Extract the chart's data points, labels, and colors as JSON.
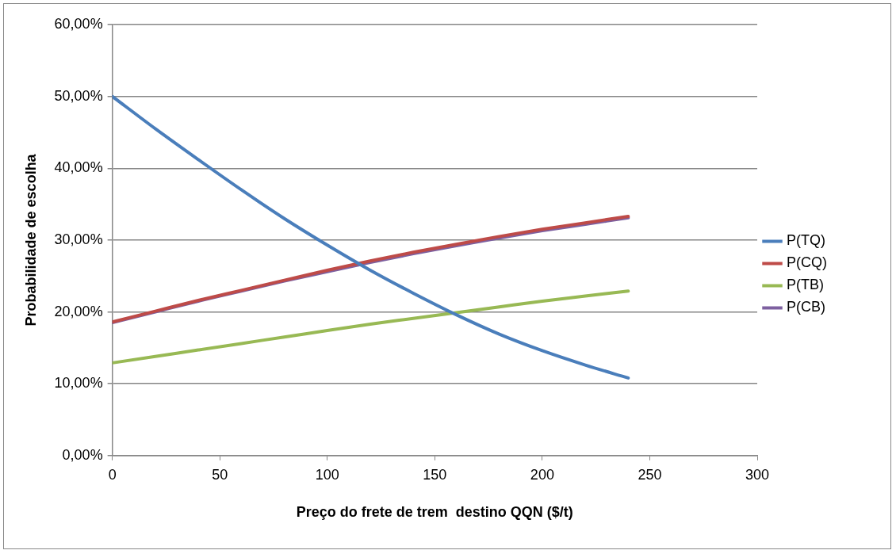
{
  "chart_data": {
    "type": "line",
    "xlabel": "Preço do frete de trem  destino QQN ($/t)",
    "ylabel": "Probabilidade de escolha",
    "x": [
      0,
      20,
      40,
      60,
      80,
      100,
      120,
      140,
      160,
      180,
      200,
      220,
      240
    ],
    "series": [
      {
        "name": "P(TQ)",
        "color": "#4a7ebb",
        "values": [
          50.0,
          45.5,
          41.2,
          37.0,
          33.0,
          29.3,
          25.8,
          22.6,
          19.6,
          16.9,
          14.6,
          12.6,
          10.8
        ]
      },
      {
        "name": "P(CQ)",
        "color": "#be4b48",
        "values": [
          18.6,
          20.1,
          21.6,
          23.0,
          24.4,
          25.8,
          27.1,
          28.3,
          29.4,
          30.5,
          31.5,
          32.4,
          33.3
        ]
      },
      {
        "name": "P(TB)",
        "color": "#98b954",
        "values": [
          12.9,
          13.8,
          14.7,
          15.6,
          16.5,
          17.4,
          18.3,
          19.1,
          19.9,
          20.7,
          21.5,
          22.2,
          22.9
        ]
      },
      {
        "name": "P(CB)",
        "color": "#7d60a0",
        "values": [
          18.5,
          20.0,
          21.5,
          22.9,
          24.3,
          25.6,
          26.9,
          28.1,
          29.2,
          30.3,
          31.3,
          32.2,
          33.1
        ]
      }
    ],
    "xlim": [
      0,
      300
    ],
    "xticks": [
      0,
      50,
      100,
      150,
      200,
      250,
      300
    ],
    "ylim": [
      0,
      60
    ],
    "yticks": [
      {
        "value": 0,
        "label": "0,00%"
      },
      {
        "value": 10,
        "label": "10,00%"
      },
      {
        "value": 20,
        "label": "20,00%"
      },
      {
        "value": 30,
        "label": "30,00%"
      },
      {
        "value": 40,
        "label": "40,00%"
      },
      {
        "value": 50,
        "label": "50,00%"
      },
      {
        "value": 60,
        "label": "60,00%"
      }
    ],
    "grid": "y",
    "legend": "right",
    "marker": "none",
    "line_style": "solid"
  }
}
